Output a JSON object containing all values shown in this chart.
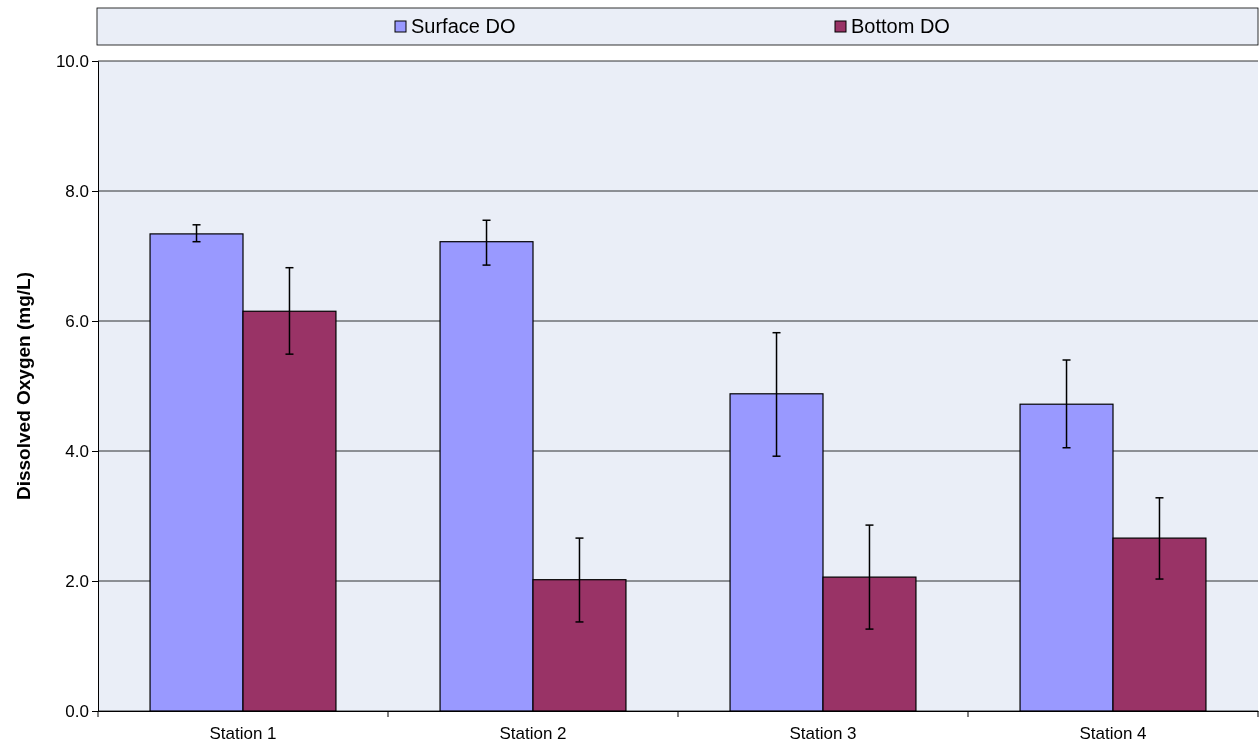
{
  "chart_data": {
    "type": "bar",
    "ylabel": "Dissolved Oxygen (mg/L)",
    "categories": [
      "Station 1",
      "Station 2",
      "Station 3",
      "Station 4"
    ],
    "series": [
      {
        "name": "Surface DO",
        "color": "#9999ff",
        "values": [
          7.34,
          7.22,
          4.88,
          4.72
        ],
        "errors": [
          [
            7.22,
            7.48
          ],
          [
            6.86,
            7.55
          ],
          [
            3.92,
            5.82
          ],
          [
            4.05,
            5.4
          ]
        ]
      },
      {
        "name": "Bottom DO",
        "color": "#993366",
        "values": [
          6.15,
          2.02,
          2.06,
          2.66
        ],
        "errors": [
          [
            5.49,
            6.82
          ],
          [
            1.37,
            2.66
          ],
          [
            1.26,
            2.86
          ],
          [
            2.03,
            3.28
          ]
        ]
      }
    ],
    "ylim": [
      0,
      10
    ],
    "yticks": [
      {
        "value": 0,
        "label": "0.0"
      },
      {
        "value": 2,
        "label": "2.0"
      },
      {
        "value": 4,
        "label": "4.0"
      },
      {
        "value": 6,
        "label": "6.0"
      },
      {
        "value": 8,
        "label": "8.0"
      },
      {
        "value": 10,
        "label": "10.0"
      }
    ],
    "grid": "y",
    "legend": "top"
  }
}
